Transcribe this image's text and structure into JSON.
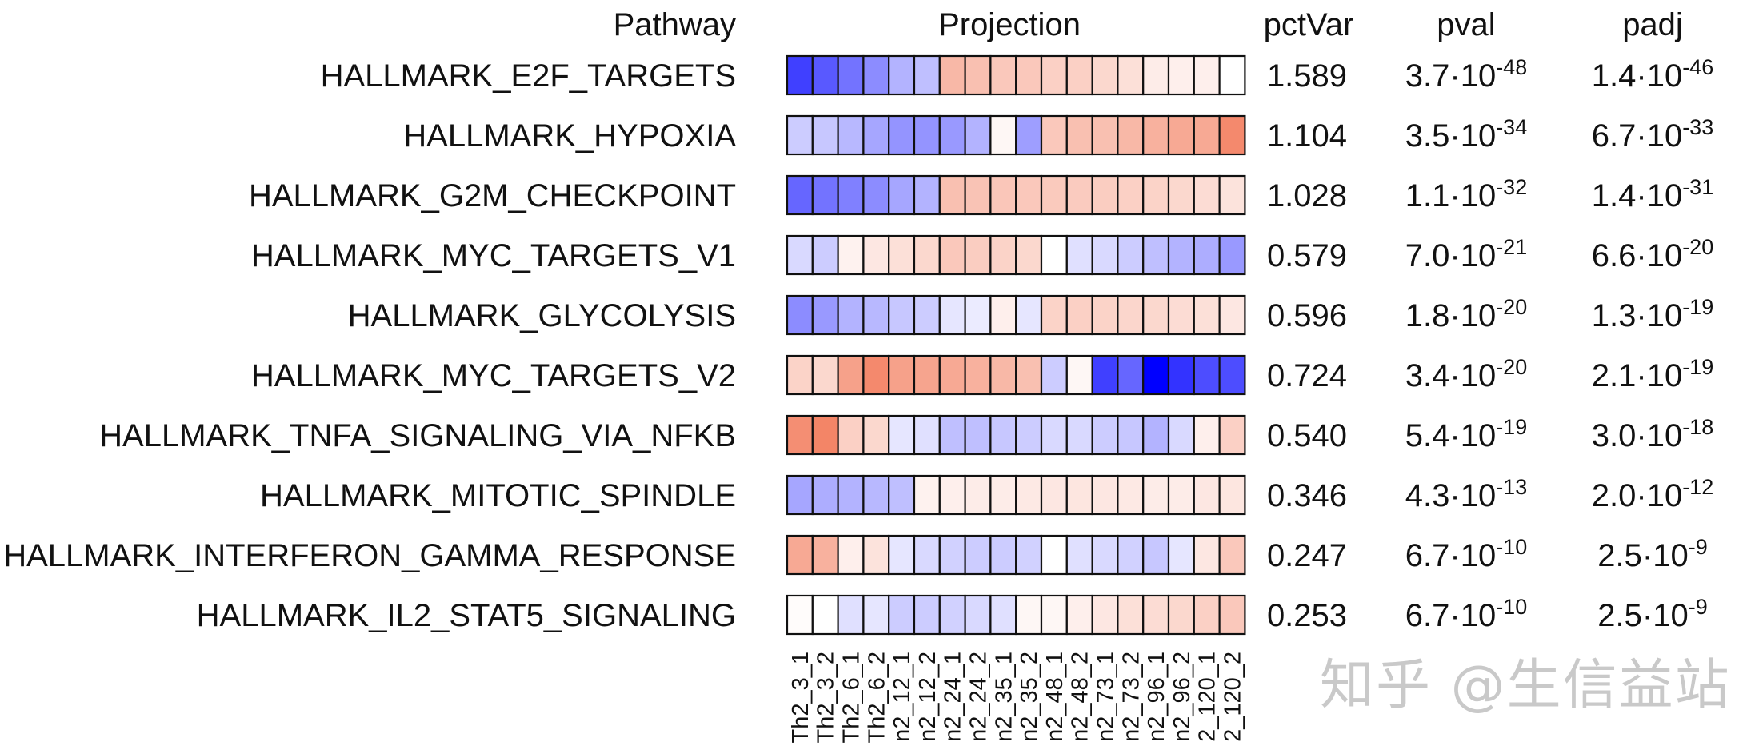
{
  "chart_data": {
    "type": "heatmap",
    "headers": {
      "pathway": "Pathway",
      "projection": "Projection",
      "pctVar": "pctVar",
      "pval": "pval",
      "padj": "padj"
    },
    "color_scale": {
      "negative": "#0000ff",
      "zero": "#ffffff",
      "positive": "#f0623c",
      "range": [
        -1,
        1
      ]
    },
    "columns": [
      "Th2_3_1",
      "Th2_3_2",
      "Th2_6_1",
      "Th2_6_2",
      "n2_12_1",
      "n2_12_2",
      "n2_24_1",
      "n2_24_2",
      "n2_35_1",
      "n2_35_2",
      "n2_48_1",
      "n2_48_2",
      "n2_73_1",
      "n2_73_2",
      "n2_96_1",
      "n2_96_2",
      "2_120_1",
      "2_120_2"
    ],
    "rows": [
      {
        "pathway": "HALLMARK_E2F_TARGETS",
        "values": [
          -0.75,
          -0.65,
          -0.55,
          -0.45,
          -0.3,
          -0.25,
          0.45,
          0.4,
          0.35,
          0.35,
          0.3,
          0.3,
          0.25,
          0.2,
          0.12,
          0.1,
          0.1,
          0.0
        ],
        "pctVar": "1.589",
        "pval": {
          "mantissa": "3.7·10",
          "exponent": "-48"
        },
        "padj": {
          "mantissa": "1.4·10",
          "exponent": "-46"
        }
      },
      {
        "pathway": "HALLMARK_HYPOXIA",
        "values": [
          -0.2,
          -0.22,
          -0.28,
          -0.35,
          -0.42,
          -0.42,
          -0.4,
          -0.3,
          0.05,
          -0.38,
          0.35,
          0.4,
          0.4,
          0.45,
          0.5,
          0.55,
          0.55,
          0.75
        ],
        "pctVar": "1.104",
        "pval": {
          "mantissa": "3.5·10",
          "exponent": "-34"
        },
        "padj": {
          "mantissa": "6.7·10",
          "exponent": "-33"
        }
      },
      {
        "pathway": "HALLMARK_G2M_CHECKPOINT",
        "values": [
          -0.6,
          -0.55,
          -0.5,
          -0.45,
          -0.35,
          -0.3,
          0.4,
          0.38,
          0.36,
          0.35,
          0.34,
          0.33,
          0.32,
          0.3,
          0.28,
          0.25,
          0.22,
          0.18
        ],
        "pctVar": "1.028",
        "pval": {
          "mantissa": "1.1·10",
          "exponent": "-32"
        },
        "padj": {
          "mantissa": "1.4·10",
          "exponent": "-31"
        }
      },
      {
        "pathway": "HALLMARK_MYC_TARGETS_V1",
        "values": [
          -0.15,
          -0.2,
          0.08,
          0.15,
          0.2,
          0.25,
          0.35,
          0.32,
          0.28,
          0.25,
          0.0,
          -0.12,
          -0.15,
          -0.2,
          -0.25,
          -0.3,
          -0.32,
          -0.4
        ],
        "pctVar": "0.579",
        "pval": {
          "mantissa": "7.0·10",
          "exponent": "-21"
        },
        "padj": {
          "mantissa": "6.6·10",
          "exponent": "-20"
        }
      },
      {
        "pathway": "HALLMARK_GLYCOLYSIS",
        "values": [
          -0.45,
          -0.4,
          -0.3,
          -0.28,
          -0.22,
          -0.2,
          -0.1,
          -0.08,
          0.1,
          -0.1,
          0.28,
          0.3,
          0.28,
          0.26,
          0.25,
          0.22,
          0.2,
          0.15
        ],
        "pctVar": "0.596",
        "pval": {
          "mantissa": "1.8·10",
          "exponent": "-20"
        },
        "padj": {
          "mantissa": "1.3·10",
          "exponent": "-19"
        }
      },
      {
        "pathway": "HALLMARK_MYC_TARGETS_V2",
        "values": [
          0.28,
          0.25,
          0.6,
          0.75,
          0.6,
          0.58,
          0.55,
          0.5,
          0.45,
          0.4,
          -0.2,
          0.05,
          -0.75,
          -0.6,
          -1.0,
          -0.8,
          -0.7,
          -0.7
        ],
        "pctVar": "0.724",
        "pval": {
          "mantissa": "3.4·10",
          "exponent": "-20"
        },
        "padj": {
          "mantissa": "2.1·10",
          "exponent": "-19"
        }
      },
      {
        "pathway": "HALLMARK_TNFA_SIGNALING_VIA_NFKB",
        "values": [
          0.72,
          0.78,
          0.3,
          0.25,
          -0.1,
          -0.12,
          -0.25,
          -0.25,
          -0.22,
          -0.2,
          -0.15,
          -0.15,
          -0.2,
          -0.22,
          -0.3,
          -0.15,
          0.1,
          0.3
        ],
        "pctVar": "0.540",
        "pval": {
          "mantissa": "5.4·10",
          "exponent": "-19"
        },
        "padj": {
          "mantissa": "3.0·10",
          "exponent": "-18"
        }
      },
      {
        "pathway": "HALLMARK_MITOTIC_SPINDLE",
        "values": [
          -0.35,
          -0.32,
          -0.3,
          -0.28,
          -0.25,
          0.08,
          0.1,
          0.12,
          0.12,
          0.14,
          0.15,
          0.16,
          0.15,
          0.14,
          0.12,
          0.12,
          0.15,
          0.16
        ],
        "pctVar": "0.346",
        "pval": {
          "mantissa": "4.3·10",
          "exponent": "-13"
        },
        "padj": {
          "mantissa": "2.0·10",
          "exponent": "-12"
        }
      },
      {
        "pathway": "HALLMARK_INTERFERON_GAMMA_RESPONSE",
        "values": [
          0.55,
          0.5,
          0.1,
          0.18,
          -0.1,
          -0.15,
          -0.18,
          -0.2,
          -0.2,
          -0.18,
          0.0,
          -0.12,
          -0.15,
          -0.18,
          -0.22,
          -0.1,
          0.15,
          0.35
        ],
        "pctVar": "0.247",
        "pval": {
          "mantissa": "6.7·10",
          "exponent": "-10"
        },
        "padj": {
          "mantissa": "2.5·10",
          "exponent": "-9"
        }
      },
      {
        "pathway": "HALLMARK_IL2_STAT5_SIGNALING",
        "values": [
          0.02,
          0.0,
          -0.12,
          -0.1,
          -0.2,
          -0.2,
          -0.18,
          -0.15,
          -0.12,
          0.05,
          0.05,
          0.1,
          0.15,
          0.2,
          0.22,
          0.25,
          0.3,
          0.35
        ],
        "pctVar": "0.253",
        "pval": {
          "mantissa": "6.7·10",
          "exponent": "-10"
        },
        "padj": {
          "mantissa": "2.5·10",
          "exponent": "-9"
        }
      }
    ]
  },
  "watermark": {
    "text": "知乎 @生信益站"
  }
}
